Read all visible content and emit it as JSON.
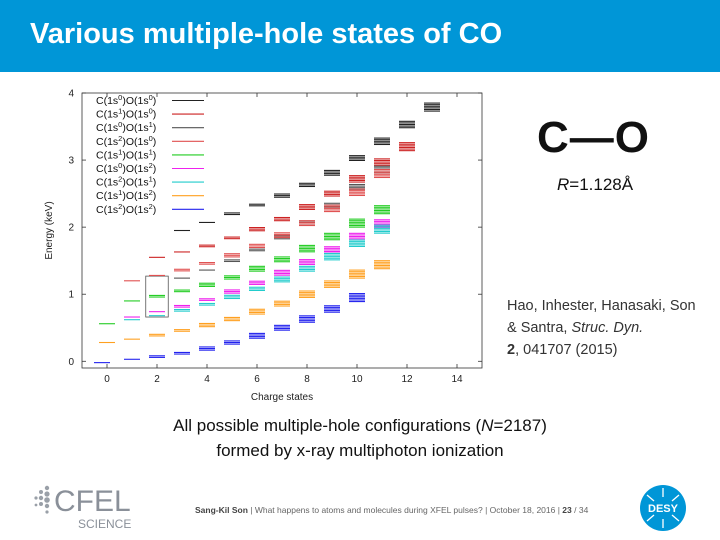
{
  "slide": {
    "title": "Various multiple-hole states of CO",
    "molecule": "C—O",
    "bond_length_var": "R",
    "bond_length_value": "=1.128Å",
    "reference": {
      "authors": "Hao, Inhester, Hanasaki, Son & Santra, ",
      "journal": "Struc. Dyn.",
      "volume": "2",
      "rest": ", 041707 (2015)"
    },
    "caption": {
      "line1_pre": "All possible multiple-hole configurations (",
      "line1_var": "N",
      "line1_post": "=2187)",
      "line2": "formed by x-ray multiphoton ionization"
    },
    "footer": {
      "author": "Sang-Kil Son",
      "talk": "What happens to atoms and molecules during XFEL pulses?",
      "date": "October 18, 2016",
      "page": "23",
      "total": "34"
    },
    "logos": {
      "cfel_text": "CFEL",
      "cfel_sub": "SCIENCE",
      "desy_text": "DESY"
    }
  },
  "chart_data": {
    "type": "scatter",
    "xlabel": "Charge states",
    "ylabel": "Energy (keV)",
    "xlim": [
      -1,
      15
    ],
    "ylim": [
      -0.1,
      4
    ],
    "x_ticks": [
      "0",
      "2",
      "4",
      "6",
      "8",
      "10",
      "12",
      "14"
    ],
    "y_ticks": [
      "0",
      "1",
      "2",
      "3",
      "4"
    ],
    "legend_position": "top-left",
    "series": [
      {
        "name": "C(1s0)O(1s0)",
        "c": "0",
        "o": "0",
        "color": "#222222",
        "points": [
          [
            3,
            1.95
          ],
          [
            4,
            2.07
          ],
          [
            5,
            2.2
          ],
          [
            6,
            2.33
          ],
          [
            7,
            2.47
          ],
          [
            8,
            2.63
          ],
          [
            9,
            2.81
          ],
          [
            10,
            3.03
          ],
          [
            11,
            3.28
          ],
          [
            12,
            3.53
          ],
          [
            13,
            3.79
          ]
        ]
      },
      {
        "name": "C(1s1)O(1s0)",
        "c": "1",
        "o": "0",
        "color": "#cc2222",
        "points": [
          [
            2,
            1.55
          ],
          [
            3,
            1.63
          ],
          [
            4,
            1.72
          ],
          [
            5,
            1.84
          ],
          [
            6,
            1.97
          ],
          [
            7,
            2.12
          ],
          [
            8,
            2.3
          ],
          [
            9,
            2.5
          ],
          [
            10,
            2.72
          ],
          [
            11,
            2.97
          ],
          [
            12,
            3.2
          ]
        ]
      },
      {
        "name": "C(1s0)O(1s1)",
        "c": "0",
        "o": "1",
        "color": "#555555",
        "points": [
          [
            3,
            1.24
          ],
          [
            4,
            1.36
          ],
          [
            5,
            1.5
          ],
          [
            6,
            1.66
          ],
          [
            7,
            1.85
          ],
          [
            8,
            2.07
          ],
          [
            9,
            2.32
          ],
          [
            10,
            2.6
          ],
          [
            11,
            2.86
          ]
        ]
      },
      {
        "name": "C(1s2)O(1s0)",
        "c": "2",
        "o": "0",
        "color": "#e05050",
        "points": [
          [
            1,
            1.2
          ],
          [
            2,
            1.28
          ],
          [
            3,
            1.36
          ],
          [
            4,
            1.46
          ],
          [
            5,
            1.58
          ],
          [
            6,
            1.72
          ],
          [
            7,
            1.88
          ],
          [
            8,
            2.06
          ],
          [
            9,
            2.28
          ],
          [
            10,
            2.52
          ],
          [
            11,
            2.8
          ]
        ]
      },
      {
        "name": "C(1s1)O(1s1)",
        "c": "1",
        "o": "1",
        "color": "#22cc22",
        "points": [
          [
            0,
            0.56
          ],
          [
            1,
            0.9
          ],
          [
            2,
            0.97
          ],
          [
            3,
            1.05
          ],
          [
            4,
            1.14
          ],
          [
            5,
            1.25
          ],
          [
            6,
            1.38
          ],
          [
            7,
            1.52
          ],
          [
            8,
            1.68
          ],
          [
            9,
            1.86
          ],
          [
            10,
            2.06
          ],
          [
            11,
            2.26
          ]
        ]
      },
      {
        "name": "C(1s0)O(1s2)",
        "c": "0",
        "o": "2",
        "color": "#ee22ee",
        "points": [
          [
            1,
            0.66
          ],
          [
            2,
            0.74
          ],
          [
            3,
            0.82
          ],
          [
            4,
            0.92
          ],
          [
            5,
            1.04
          ],
          [
            6,
            1.17
          ],
          [
            7,
            1.32
          ],
          [
            8,
            1.48
          ],
          [
            9,
            1.66
          ],
          [
            10,
            1.86
          ],
          [
            11,
            2.05
          ]
        ]
      },
      {
        "name": "C(1s2)O(1s1)",
        "c": "2",
        "o": "1",
        "color": "#22cccc",
        "points": [
          [
            1,
            0.62
          ],
          [
            2,
            0.68
          ],
          [
            3,
            0.76
          ],
          [
            4,
            0.85
          ],
          [
            5,
            0.96
          ],
          [
            6,
            1.08
          ],
          [
            7,
            1.22
          ],
          [
            8,
            1.38
          ],
          [
            9,
            1.56
          ],
          [
            10,
            1.76
          ],
          [
            11,
            1.97
          ]
        ]
      },
      {
        "name": "C(1s1)O(1s2)",
        "c": "1",
        "o": "2",
        "color": "#ffa020",
        "points": [
          [
            0,
            0.28
          ],
          [
            1,
            0.33
          ],
          [
            2,
            0.39
          ],
          [
            3,
            0.46
          ],
          [
            4,
            0.54
          ],
          [
            5,
            0.63
          ],
          [
            6,
            0.74
          ],
          [
            7,
            0.86
          ],
          [
            8,
            1.0
          ],
          [
            9,
            1.15
          ],
          [
            10,
            1.3
          ],
          [
            11,
            1.44
          ]
        ]
      },
      {
        "name": "C(1s2)O(1s2)",
        "c": "2",
        "o": "2",
        "color": "#2222ee",
        "points": [
          [
            -0.2,
            -0.02
          ],
          [
            1,
            0.03
          ],
          [
            2,
            0.07
          ],
          [
            3,
            0.12
          ],
          [
            4,
            0.19
          ],
          [
            5,
            0.28
          ],
          [
            6,
            0.38
          ],
          [
            7,
            0.5
          ],
          [
            8,
            0.63
          ],
          [
            9,
            0.78
          ],
          [
            10,
            0.95
          ]
        ]
      }
    ]
  }
}
